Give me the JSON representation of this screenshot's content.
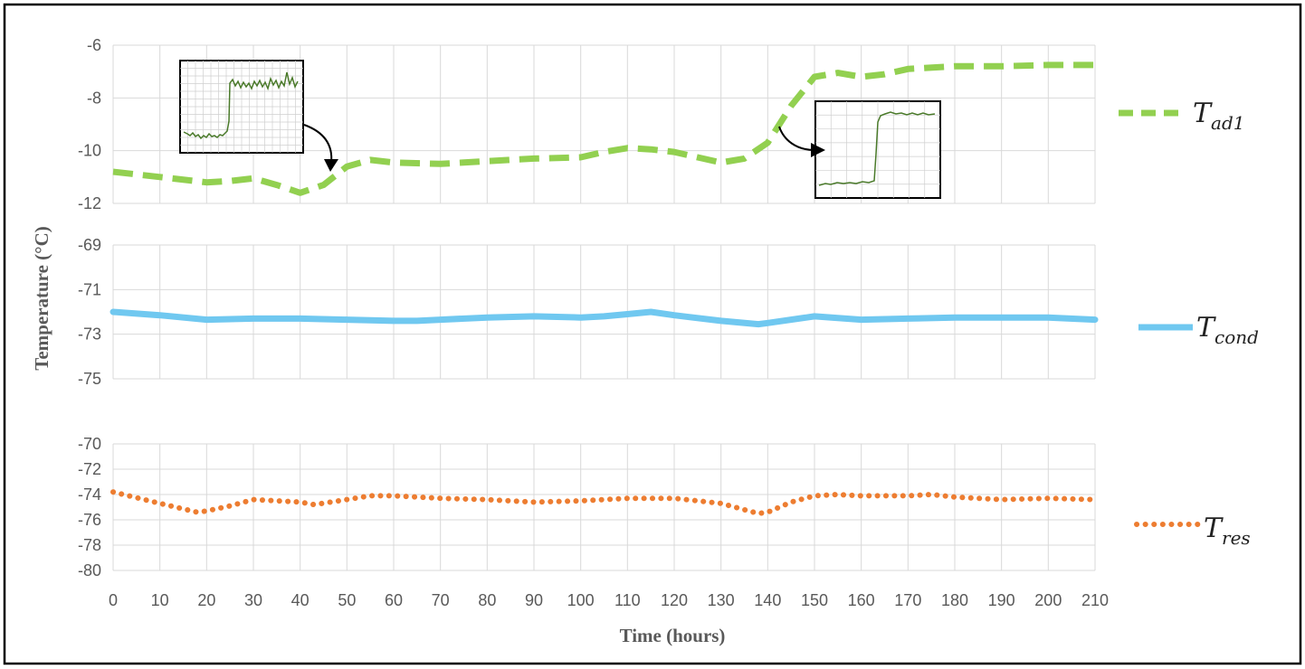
{
  "chart_data": {
    "type": "line",
    "xlabel": "Time (hours)",
    "ylabel": "Temperature (°C)",
    "xlim": [
      0,
      210
    ],
    "x_ticks": [
      0,
      10,
      20,
      30,
      40,
      50,
      60,
      70,
      80,
      90,
      100,
      110,
      120,
      130,
      140,
      150,
      160,
      170,
      180,
      190,
      200,
      210
    ],
    "grid": true,
    "legend_placement": "right",
    "panels": [
      {
        "id": "top",
        "ylim": [
          -12,
          -6
        ],
        "y_ticks": [
          -6,
          -8,
          -10,
          -12
        ],
        "series": [
          {
            "name": "T_ad1",
            "legend": {
              "main": "T",
              "sub": "ad1"
            },
            "style": "dashed",
            "color": "#92d050",
            "x": [
              0,
              10,
              20,
              25,
              30,
              35,
              40,
              45,
              50,
              55,
              60,
              70,
              80,
              90,
              100,
              105,
              110,
              115,
              120,
              125,
              130,
              135,
              140,
              145,
              150,
              155,
              160,
              165,
              170,
              180,
              190,
              200,
              210
            ],
            "y": [
              -10.8,
              -11.0,
              -11.2,
              -11.15,
              -11.05,
              -11.3,
              -11.6,
              -11.3,
              -10.6,
              -10.35,
              -10.45,
              -10.5,
              -10.4,
              -10.3,
              -10.25,
              -10.05,
              -9.9,
              -9.95,
              -10.05,
              -10.25,
              -10.45,
              -10.3,
              -9.7,
              -8.3,
              -7.2,
              -7.05,
              -7.2,
              -7.1,
              -6.9,
              -6.8,
              -6.8,
              -6.75,
              -6.75
            ]
          }
        ]
      },
      {
        "id": "middle",
        "ylim": [
          -75,
          -69
        ],
        "y_ticks": [
          -69,
          -71,
          -73,
          -75
        ],
        "series": [
          {
            "name": "T_cond",
            "legend": {
              "main": "T",
              "sub": "cond"
            },
            "style": "solid",
            "color": "#70c8f0",
            "x": [
              0,
              10,
              20,
              30,
              40,
              50,
              60,
              65,
              70,
              80,
              90,
              100,
              105,
              110,
              115,
              120,
              130,
              138,
              140,
              150,
              160,
              170,
              180,
              190,
              200,
              210
            ],
            "y": [
              -72.0,
              -72.15,
              -72.35,
              -72.3,
              -72.3,
              -72.35,
              -72.4,
              -72.4,
              -72.35,
              -72.25,
              -72.2,
              -72.25,
              -72.2,
              -72.1,
              -72.0,
              -72.15,
              -72.4,
              -72.55,
              -72.5,
              -72.2,
              -72.35,
              -72.3,
              -72.25,
              -72.25,
              -72.25,
              -72.35
            ]
          }
        ]
      },
      {
        "id": "bottom",
        "ylim": [
          -80,
          -70
        ],
        "y_ticks": [
          -70,
          -72,
          -74,
          -76,
          -78,
          -80
        ],
        "series": [
          {
            "name": "T_res",
            "legend": {
              "main": "T",
              "sub": "res"
            },
            "style": "dotted",
            "color": "#ed7d31",
            "x": [
              0,
              10,
              18,
              20,
              25,
              30,
              40,
              43,
              50,
              55,
              60,
              70,
              80,
              90,
              100,
              110,
              120,
              130,
              135,
              138,
              140,
              145,
              150,
              155,
              160,
              170,
              175,
              180,
              190,
              200,
              210
            ],
            "y": [
              -73.8,
              -74.7,
              -75.4,
              -75.3,
              -74.9,
              -74.4,
              -74.6,
              -74.8,
              -74.4,
              -74.1,
              -74.1,
              -74.3,
              -74.4,
              -74.6,
              -74.5,
              -74.3,
              -74.3,
              -74.7,
              -75.2,
              -75.5,
              -75.4,
              -74.6,
              -74.1,
              -74.0,
              -74.1,
              -74.1,
              -74.0,
              -74.2,
              -74.4,
              -74.3,
              -74.4
            ]
          }
        ]
      }
    ],
    "annotations": [
      {
        "type": "inset",
        "target": "T_ad1",
        "description": "zoomed view with step increase",
        "at_x": 45
      },
      {
        "type": "inset",
        "target": "T_ad1",
        "description": "zoomed view with step increase",
        "at_x": 140
      }
    ]
  }
}
